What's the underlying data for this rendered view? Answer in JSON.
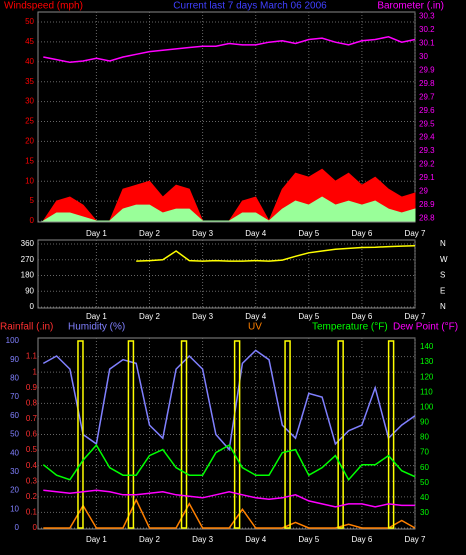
{
  "chart_data": [
    {
      "type": "line",
      "title": "Current last 7 days March 06 2006",
      "ylabel": "Windspeed (mph)",
      "y2label": "Barometer (.in)",
      "x": [
        0,
        0.25,
        0.5,
        0.75,
        1,
        1.25,
        1.5,
        1.75,
        2,
        2.25,
        2.5,
        2.75,
        3,
        3.25,
        3.5,
        3.75,
        4,
        4.25,
        4.5,
        4.75,
        5,
        5.25,
        5.5,
        5.75,
        6,
        6.25,
        6.5,
        6.75,
        7
      ],
      "xlim": [
        -0.1,
        7
      ],
      "xticks": [
        {
          "value": 1,
          "label": "Day 1"
        },
        {
          "value": 2,
          "label": "Day 2"
        },
        {
          "value": 3,
          "label": "Day 3"
        },
        {
          "value": 4,
          "label": "Day 4"
        },
        {
          "value": 5,
          "label": "Day 5"
        },
        {
          "value": 6,
          "label": "Day 6"
        },
        {
          "value": 7,
          "label": "Day 7"
        }
      ],
      "ylim": [
        0,
        50
      ],
      "yticks": [
        0,
        5,
        10,
        15,
        20,
        25,
        30,
        35,
        40,
        45,
        50
      ],
      "y2lim": [
        28.78,
        30.26
      ],
      "y2ticks": [
        28.8,
        28.9,
        29,
        29.1,
        29.2,
        29.3,
        29.4,
        29.5,
        29.6,
        29.7,
        29.8,
        29.9,
        30,
        30.1,
        30.2,
        30.3
      ],
      "axis_colors": {
        "y": "#ff0000",
        "y2": "#ff00ff"
      },
      "grid": true,
      "series": [
        {
          "color": "#ff0000",
          "style": "area",
          "values": [
            0,
            5,
            6,
            4,
            0,
            0,
            8,
            9,
            10,
            6,
            9,
            8,
            0,
            0,
            0,
            5,
            6,
            0,
            8,
            12,
            11,
            13,
            10,
            12,
            9,
            11,
            8,
            6,
            7
          ]
        },
        {
          "color": "#99ff99",
          "style": "area",
          "values": [
            0,
            2,
            2,
            1,
            0,
            0,
            3,
            4,
            4,
            2,
            3,
            3,
            0,
            0,
            0,
            2,
            2,
            0,
            3,
            5,
            4,
            6,
            4,
            5,
            4,
            5,
            3,
            2,
            3
          ]
        },
        {
          "color": "#ff00ff",
          "axis": "y2",
          "values": [
            30,
            29.98,
            29.96,
            29.97,
            29.99,
            29.97,
            30,
            30.02,
            30.04,
            30.05,
            30.06,
            30.07,
            30.08,
            30.08,
            30.1,
            30.09,
            30.09,
            30.11,
            30.12,
            30.1,
            30.13,
            30.14,
            30.11,
            30.09,
            30.12,
            30.13,
            30.15,
            30.11,
            30.13
          ]
        }
      ]
    },
    {
      "type": "line",
      "x": [
        0,
        0.25,
        0.5,
        0.75,
        1,
        1.25,
        1.5,
        1.75,
        2,
        2.25,
        2.5,
        2.75,
        3,
        3.25,
        3.5,
        3.75,
        4,
        4.25,
        4.5,
        4.75,
        5,
        5.25,
        5.5,
        5.75,
        6,
        6.25,
        6.5,
        6.75,
        7
      ],
      "xlim": [
        -0.1,
        7
      ],
      "xticks": [
        {
          "value": 1,
          "label": "Day 1"
        },
        {
          "value": 2,
          "label": "Day 2"
        },
        {
          "value": 3,
          "label": "Day 3"
        },
        {
          "value": 4,
          "label": "Day 4"
        },
        {
          "value": 5,
          "label": "Day 5"
        },
        {
          "value": 6,
          "label": "Day 6"
        },
        {
          "value": 7,
          "label": "Day 7"
        }
      ],
      "ylim": [
        0,
        360
      ],
      "yticks": [
        0,
        90,
        180,
        270,
        360
      ],
      "y2lim": [
        0,
        360
      ],
      "y2ticks": [
        {
          "value": 360,
          "label": "N"
        },
        {
          "value": 270,
          "label": "W"
        },
        {
          "value": 180,
          "label": "S"
        },
        {
          "value": 90,
          "label": "E"
        },
        {
          "value": 0,
          "label": "N"
        }
      ],
      "axis_colors": {
        "y": "#ffffff",
        "y2": "#ffffff"
      },
      "grid": true,
      "series": [
        {
          "color": "#ffff00",
          "values": [
            null,
            null,
            null,
            null,
            null,
            null,
            null,
            262,
            265,
            270,
            320,
            265,
            262,
            265,
            262,
            262,
            265,
            262,
            268,
            290,
            310,
            320,
            330,
            335,
            340,
            342,
            345,
            348,
            350
          ]
        }
      ]
    },
    {
      "type": "line",
      "ylabel": "Rainfall (.in)",
      "x": [
        0,
        0.25,
        0.5,
        0.75,
        1,
        1.25,
        1.5,
        1.75,
        2,
        2.25,
        2.5,
        2.75,
        3,
        3.25,
        3.5,
        3.75,
        4,
        4.25,
        4.5,
        4.75,
        5,
        5.25,
        5.5,
        5.75,
        6,
        6.25,
        6.5,
        6.75,
        7
      ],
      "xlim": [
        -0.1,
        7
      ],
      "xticks": [
        {
          "value": 1,
          "label": "Day 1"
        },
        {
          "value": 2,
          "label": "Day 2"
        },
        {
          "value": 3,
          "label": "Day 3"
        },
        {
          "value": 4,
          "label": "Day 4"
        },
        {
          "value": 5,
          "label": "Day 5"
        },
        {
          "value": 6,
          "label": "Day 6"
        },
        {
          "value": 7,
          "label": "Day 7"
        }
      ],
      "ylim": [
        0,
        1.2
      ],
      "yticks": [
        0,
        0.1,
        0.2,
        0.3,
        0.4,
        0.5,
        0.6,
        0.7,
        0.8,
        0.9,
        1,
        1.1
      ],
      "y3lim": [
        0,
        100
      ],
      "y3ticks": [
        0,
        10,
        20,
        30,
        40,
        50,
        60,
        70,
        80,
        90,
        100
      ],
      "y2lim": [
        20,
        144
      ],
      "y2ticks": [
        30,
        40,
        50,
        60,
        70,
        80,
        90,
        100,
        110,
        120,
        130,
        140
      ],
      "axis_colors": {
        "y": "#ff3030",
        "y3": "#8080ff",
        "y2": "#00ff00"
      },
      "grid": true,
      "series": [
        {
          "name": "Humidity (%)",
          "color": "#8080ff",
          "axis": "y3",
          "values": [
            88,
            92,
            85,
            50,
            45,
            85,
            90,
            88,
            55,
            48,
            85,
            92,
            85,
            50,
            42,
            88,
            95,
            90,
            55,
            48,
            72,
            70,
            45,
            52,
            55,
            75,
            48,
            55,
            60
          ]
        },
        {
          "name": "UV",
          "color": "#ff8000",
          "axis": "y3",
          "values": [
            0,
            0,
            0,
            12,
            0,
            0,
            0,
            15,
            0,
            0,
            0,
            13,
            0,
            0,
            0,
            10,
            0,
            0,
            0,
            3,
            0,
            0,
            0,
            2,
            0,
            0,
            0,
            4,
            0
          ]
        },
        {
          "color": "#ffff00",
          "axis": "y3",
          "style": "bar",
          "x": [
            0.7,
            1.65,
            2.65,
            3.65,
            4.6,
            5.6,
            6.55
          ],
          "values": [
            100,
            100,
            100,
            100,
            100,
            100,
            100
          ]
        },
        {
          "name": "Temperature (°F)",
          "color": "#00ff00",
          "axis": "y2",
          "values": [
            62,
            55,
            52,
            65,
            75,
            60,
            55,
            55,
            68,
            72,
            60,
            55,
            55,
            70,
            75,
            60,
            55,
            55,
            70,
            72,
            55,
            60,
            68,
            52,
            62,
            62,
            68,
            58,
            54
          ]
        },
        {
          "name": "Dew Point (°F)",
          "color": "#ff00ff",
          "axis": "y2",
          "values": [
            45,
            44,
            43,
            44,
            45,
            44,
            42,
            42,
            43,
            44,
            42,
            41,
            40,
            42,
            44,
            42,
            40,
            39,
            40,
            42,
            38,
            36,
            34,
            36,
            36,
            34,
            36,
            35,
            35
          ]
        }
      ]
    }
  ]
}
